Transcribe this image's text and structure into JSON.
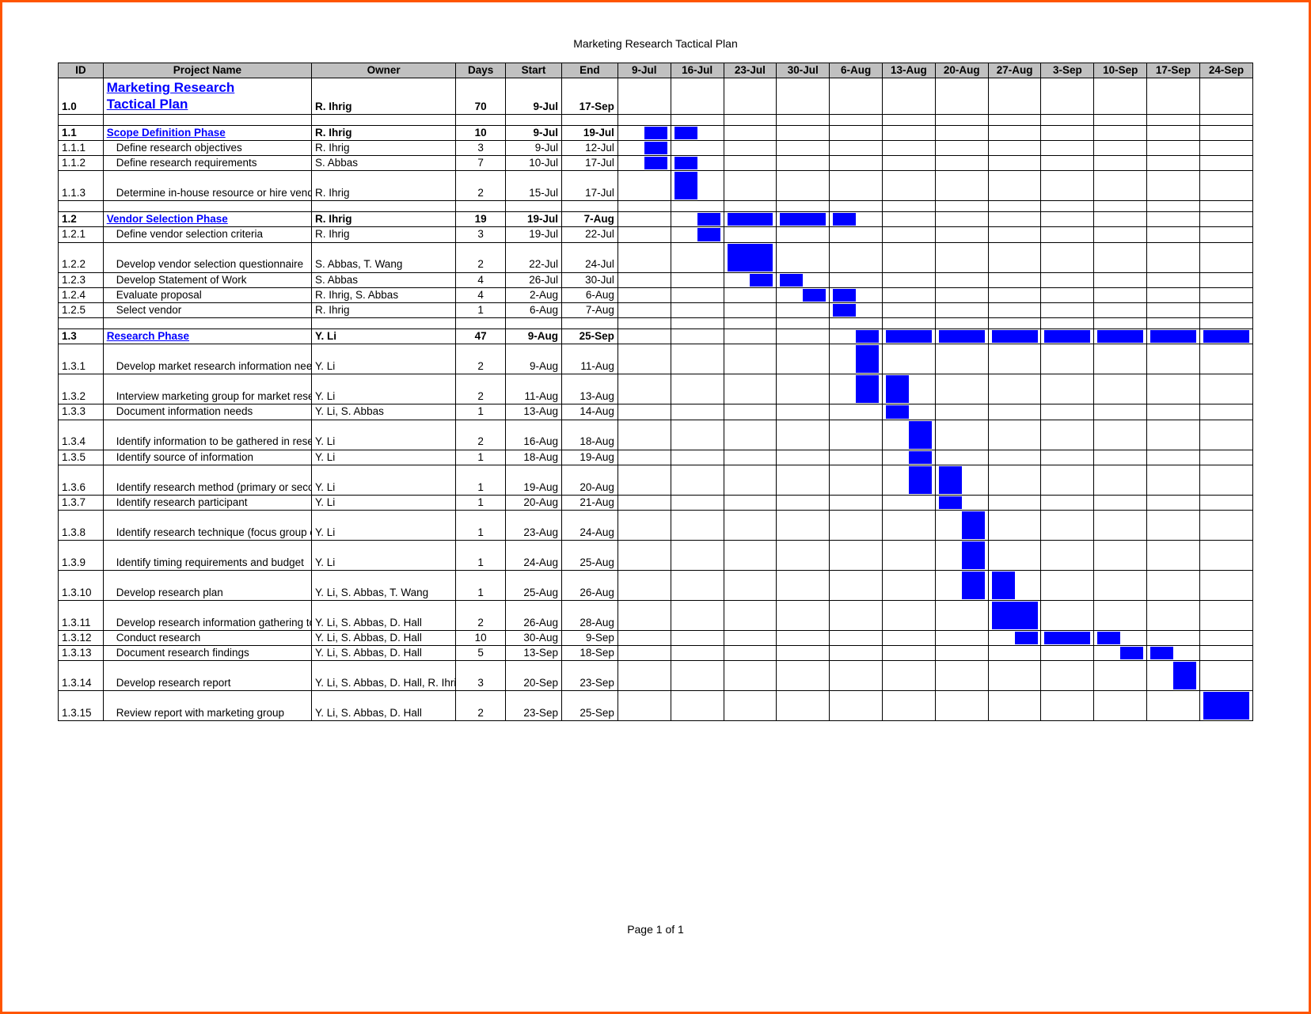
{
  "doc_title": "Marketing Research Tactical Plan",
  "page_footer": "Page 1 of 1",
  "colors": {
    "bar_fill": "#0000ff",
    "header_bg": "#c0c0c0",
    "frame": "#ff5500",
    "link": "#0000ff"
  },
  "columns": {
    "id": "ID",
    "name": "Project Name",
    "owner": "Owner",
    "days": "Days",
    "start": "Start",
    "end": "End"
  },
  "week_headers": [
    "9-Jul",
    "16-Jul",
    "23-Jul",
    "30-Jul",
    "6-Aug",
    "13-Aug",
    "20-Aug",
    "27-Aug",
    "3-Sep",
    "10-Sep",
    "17-Sep",
    "24-Sep"
  ],
  "rows": [
    {
      "type": "title",
      "id": "1.0",
      "name": "Marketing Research Tactical Plan",
      "owner": "R. Ihrig",
      "days": "70",
      "start": "9-Jul",
      "end": "17-Sep",
      "bars": []
    },
    {
      "type": "spacer"
    },
    {
      "type": "phase",
      "id": "1.1",
      "name": "Scope Definition Phase",
      "owner": "R. Ihrig",
      "days": "10",
      "start": "9-Jul",
      "end": "19-Jul",
      "bars": [
        "0b",
        "1a"
      ]
    },
    {
      "type": "task",
      "id": "1.1.1",
      "name": "Define research objectives",
      "owner": "R. Ihrig",
      "days": "3",
      "start": "9-Jul",
      "end": "12-Jul",
      "bars": [
        "0b"
      ]
    },
    {
      "type": "task",
      "id": "1.1.2",
      "name": "Define research requirements",
      "owner": "S. Abbas",
      "days": "7",
      "start": "10-Jul",
      "end": "17-Jul",
      "bars": [
        "0b",
        "1a"
      ]
    },
    {
      "type": "task",
      "id": "1.1.3",
      "tall": true,
      "name": "Determine in-house resource or hire vendor",
      "owner": "R. Ihrig",
      "days": "2",
      "start": "15-Jul",
      "end": "17-Jul",
      "bars": [
        "1a"
      ]
    },
    {
      "type": "spacer"
    },
    {
      "type": "phase",
      "id": "1.2",
      "name": "Vendor Selection Phase",
      "owner": "R. Ihrig",
      "days": "19",
      "start": "19-Jul",
      "end": "7-Aug",
      "bars": [
        "1b",
        "2a",
        "2b",
        "3a",
        "3b",
        "4a"
      ]
    },
    {
      "type": "task",
      "id": "1.2.1",
      "name": "Define vendor selection criteria",
      "owner": "R. Ihrig",
      "days": "3",
      "start": "19-Jul",
      "end": "22-Jul",
      "bars": [
        "1b"
      ]
    },
    {
      "type": "task",
      "id": "1.2.2",
      "tall": true,
      "name": "Develop vendor selection questionnaire",
      "owner": "S. Abbas, T. Wang",
      "days": "2",
      "start": "22-Jul",
      "end": "24-Jul",
      "bars": [
        "2a",
        "2b"
      ]
    },
    {
      "type": "task",
      "id": "1.2.3",
      "name": "Develop Statement of Work",
      "owner": "S. Abbas",
      "days": "4",
      "start": "26-Jul",
      "end": "30-Jul",
      "bars": [
        "2b",
        "3a"
      ]
    },
    {
      "type": "task",
      "id": "1.2.4",
      "name": "Evaluate proposal",
      "owner": "R. Ihrig, S. Abbas",
      "days": "4",
      "start": "2-Aug",
      "end": "6-Aug",
      "bars": [
        "3b",
        "4a"
      ]
    },
    {
      "type": "task",
      "id": "1.2.5",
      "name": "Select vendor",
      "owner": "R. Ihrig",
      "days": "1",
      "start": "6-Aug",
      "end": "7-Aug",
      "bars": [
        "4a"
      ]
    },
    {
      "type": "spacer"
    },
    {
      "type": "phase",
      "id": "1.3",
      "name": "Research Phase",
      "owner": "Y. Li",
      "days": "47",
      "start": "9-Aug",
      "end": "25-Sep",
      "bars": [
        "4b",
        "5a",
        "5b",
        "6a",
        "6b",
        "7a",
        "7b",
        "8a",
        "8b",
        "9a",
        "9b",
        "10a",
        "10b",
        "11a",
        "11b"
      ]
    },
    {
      "type": "task",
      "id": "1.3.1",
      "tall": true,
      "name": "Develop market research information needs questionnaire",
      "owner": "Y. Li",
      "days": "2",
      "start": "9-Aug",
      "end": "11-Aug",
      "bars": [
        "4b"
      ]
    },
    {
      "type": "task",
      "id": "1.3.2",
      "tall": true,
      "name": "Interview marketing group for market research needs",
      "owner": "Y. Li",
      "days": "2",
      "start": "11-Aug",
      "end": "13-Aug",
      "bars": [
        "4b",
        "5a"
      ]
    },
    {
      "type": "task",
      "id": "1.3.3",
      "name": "Document information needs",
      "owner": "Y. Li, S. Abbas",
      "days": "1",
      "start": "13-Aug",
      "end": "14-Aug",
      "bars": [
        "5a"
      ]
    },
    {
      "type": "task",
      "id": "1.3.4",
      "tall": true,
      "name": "Identify information to be gathered in research",
      "owner": "Y. Li",
      "days": "2",
      "start": "16-Aug",
      "end": "18-Aug",
      "bars": [
        "5b"
      ]
    },
    {
      "type": "task",
      "id": "1.3.5",
      "name": "Identify source of information",
      "owner": "Y. Li",
      "days": "1",
      "start": "18-Aug",
      "end": "19-Aug",
      "bars": [
        "5b"
      ]
    },
    {
      "type": "task",
      "id": "1.3.6",
      "tall": true,
      "name": "Identify research method (primary or secondary)",
      "owner": "Y. Li",
      "days": "1",
      "start": "19-Aug",
      "end": "20-Aug",
      "bars": [
        "5b",
        "6a"
      ]
    },
    {
      "type": "task",
      "id": "1.3.7",
      "name": "Identify research participant",
      "owner": "Y. Li",
      "days": "1",
      "start": "20-Aug",
      "end": "21-Aug",
      "bars": [
        "6a"
      ]
    },
    {
      "type": "task",
      "id": "1.3.8",
      "tall": true,
      "name": "Identify research technique (focus group or survey)",
      "owner": "Y. Li",
      "days": "1",
      "start": "23-Aug",
      "end": "24-Aug",
      "bars": [
        "6b"
      ]
    },
    {
      "type": "task",
      "id": "1.3.9",
      "tall": true,
      "name": "Identify timing requirements and budget",
      "owner": "Y. Li",
      "days": "1",
      "start": "24-Aug",
      "end": "25-Aug",
      "bars": [
        "6b"
      ]
    },
    {
      "type": "task",
      "id": "1.3.10",
      "tall": true,
      "name": "Develop research plan",
      "owner": "Y. Li, S. Abbas, T. Wang",
      "days": "1",
      "start": "25-Aug",
      "end": "26-Aug",
      "bars": [
        "6b",
        "7a"
      ]
    },
    {
      "type": "task",
      "id": "1.3.11",
      "tall": true,
      "name": "Develop research information gathering tool",
      "owner": "Y. Li, S. Abbas, D. Hall",
      "days": "2",
      "start": "26-Aug",
      "end": "28-Aug",
      "bars": [
        "7a",
        "7b"
      ]
    },
    {
      "type": "task",
      "id": "1.3.12",
      "name": "Conduct research",
      "owner": "Y. Li, S. Abbas, D. Hall",
      "days": "10",
      "start": "30-Aug",
      "end": "9-Sep",
      "bars": [
        "7b",
        "8a",
        "8b",
        "9a"
      ]
    },
    {
      "type": "task",
      "id": "1.3.13",
      "name": "Document research findings",
      "owner": "Y. Li, S. Abbas, D. Hall",
      "days": "5",
      "start": "13-Sep",
      "end": "18-Sep",
      "bars": [
        "9b",
        "10a"
      ]
    },
    {
      "type": "task",
      "id": "1.3.14",
      "tall": true,
      "name": "Develop research report",
      "owner": "Y. Li, S. Abbas, D. Hall, R. Ihrig",
      "days": "3",
      "start": "20-Sep",
      "end": "23-Sep",
      "bars": [
        "10b"
      ]
    },
    {
      "type": "task",
      "id": "1.3.15",
      "tall": true,
      "name": "Review report with marketing group",
      "owner": "Y. Li, S. Abbas, D. Hall",
      "days": "2",
      "start": "23-Sep",
      "end": "25-Sep",
      "bars": [
        "11a",
        "11b"
      ]
    }
  ]
}
